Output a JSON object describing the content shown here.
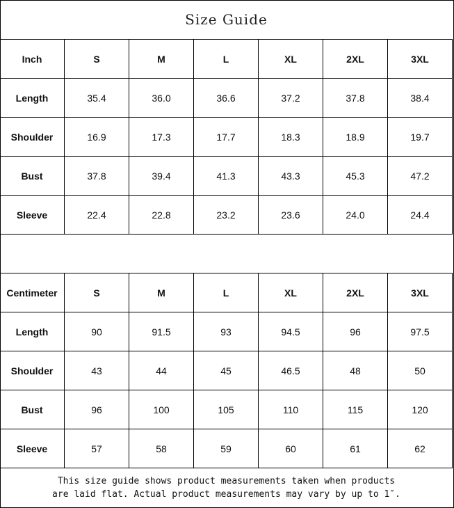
{
  "title": "Size Guide",
  "inch_table": {
    "headers": [
      "Inch",
      "S",
      "M",
      "L",
      "XL",
      "2XL",
      "3XL"
    ],
    "rows": [
      [
        "Length",
        "35.4",
        "36.0",
        "36.6",
        "37.2",
        "37.8",
        "38.4"
      ],
      [
        "Shoulder",
        "16.9",
        "17.3",
        "17.7",
        "18.3",
        "18.9",
        "19.7"
      ],
      [
        "Bust",
        "37.8",
        "39.4",
        "41.3",
        "43.3",
        "45.3",
        "47.2"
      ],
      [
        "Sleeve",
        "22.4",
        "22.8",
        "23.2",
        "23.6",
        "24.0",
        "24.4"
      ]
    ]
  },
  "cm_table": {
    "headers": [
      "Centimeter",
      "S",
      "M",
      "L",
      "XL",
      "2XL",
      "3XL"
    ],
    "rows": [
      [
        "Length",
        "90",
        "91.5",
        "93",
        "94.5",
        "96",
        "97.5"
      ],
      [
        "Shoulder",
        "43",
        "44",
        "45",
        "46.5",
        "48",
        "50"
      ],
      [
        "Bust",
        "96",
        "100",
        "105",
        "110",
        "115",
        "120"
      ],
      [
        "Sleeve",
        "57",
        "58",
        "59",
        "60",
        "61",
        "62"
      ]
    ]
  },
  "footer": {
    "line1": "This size guide shows product measurements taken when products",
    "line2": "are laid flat. Actual product measurements may vary by up to 1″."
  }
}
